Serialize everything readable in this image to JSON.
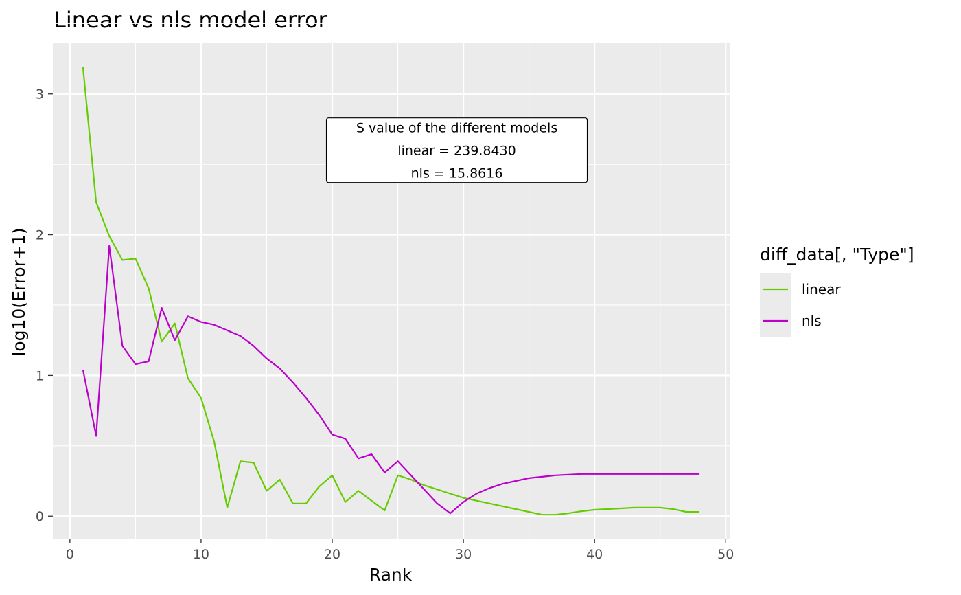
{
  "chart_data": {
    "type": "line",
    "title": "Linear vs nls model error",
    "xlabel": "Rank",
    "ylabel": "log10(Error+1)",
    "xlim": [
      -1.3,
      50.3
    ],
    "ylim": [
      -0.16,
      3.36
    ],
    "x_ticks": [
      0,
      10,
      20,
      30,
      40,
      50
    ],
    "x_tick_labels": [
      "0",
      "10",
      "20",
      "30",
      "40",
      "50"
    ],
    "y_ticks": [
      0,
      1,
      2,
      3
    ],
    "y_tick_labels": [
      "0",
      "1",
      "2",
      "3"
    ],
    "grid": true,
    "legend": {
      "title": "diff_data[, \"Type\"]",
      "position": "right"
    },
    "x": [
      1,
      2,
      3,
      4,
      5,
      6,
      7,
      8,
      9,
      10,
      11,
      12,
      13,
      14,
      15,
      16,
      17,
      18,
      19,
      20,
      21,
      22,
      23,
      24,
      25,
      26,
      27,
      28,
      29,
      30,
      31,
      32,
      33,
      34,
      35,
      36,
      37,
      38,
      39,
      40,
      41,
      42,
      43,
      44,
      45,
      46,
      47,
      48
    ],
    "series": [
      {
        "name": "linear",
        "color": "#66cc00",
        "values": [
          3.19,
          2.23,
          1.99,
          1.82,
          1.83,
          1.62,
          1.24,
          1.37,
          0.98,
          0.84,
          0.53,
          0.06,
          0.39,
          0.38,
          0.18,
          0.26,
          0.09,
          0.09,
          0.21,
          0.29,
          0.1,
          0.18,
          0.11,
          0.04,
          0.29,
          0.26,
          0.22,
          0.19,
          0.16,
          0.13,
          0.11,
          0.09,
          0.07,
          0.05,
          0.03,
          0.01,
          0.01,
          0.02,
          0.035,
          0.045,
          0.05,
          0.055,
          0.06,
          0.06,
          0.06,
          0.05,
          0.03,
          0.03
        ]
      },
      {
        "name": "nls",
        "color": "#bb00cc",
        "values": [
          1.04,
          0.57,
          1.92,
          1.21,
          1.08,
          1.1,
          1.48,
          1.25,
          1.42,
          1.38,
          1.36,
          1.32,
          1.28,
          1.21,
          1.12,
          1.05,
          0.95,
          0.84,
          0.72,
          0.58,
          0.55,
          0.41,
          0.44,
          0.31,
          0.39,
          0.29,
          0.19,
          0.09,
          0.02,
          0.1,
          0.16,
          0.2,
          0.23,
          0.25,
          0.27,
          0.28,
          0.29,
          0.295,
          0.3,
          0.3,
          0.3,
          0.3,
          0.3,
          0.3,
          0.3,
          0.3,
          0.3,
          0.3
        ]
      }
    ],
    "annotation": {
      "lines": [
        "S  value of the different models",
        "linear = 239.8430",
        "nls = 15.8616"
      ],
      "anchor_x": 29.5,
      "anchor_y": 2.6
    }
  },
  "colors": {
    "panel_background": "#ebebeb",
    "grid": "#ffffff",
    "tick_text": "#4d4d4d"
  }
}
